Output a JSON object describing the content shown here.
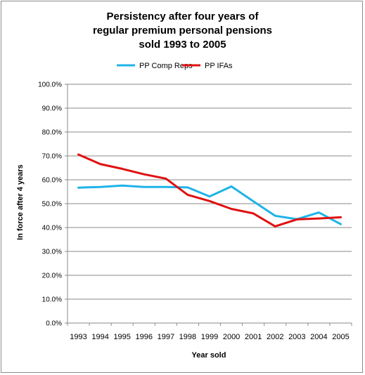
{
  "chart_data": {
    "type": "line",
    "title_lines": [
      "Persistency after four years of",
      "regular premium personal pensions",
      "sold 1993 to 2005"
    ],
    "xlabel": "Year sold",
    "ylabel": "In force after 4 years",
    "x": [
      "1993",
      "1994",
      "1995",
      "1996",
      "1997",
      "1998",
      "1999",
      "2000",
      "2001",
      "2002",
      "2003",
      "2004",
      "2005"
    ],
    "ylim": [
      0,
      100
    ],
    "yticks": [
      "0.0%",
      "10.0%",
      "20.0%",
      "30.0%",
      "40.0%",
      "50.0%",
      "60.0%",
      "70.0%",
      "80.0%",
      "90.0%",
      "100.0%"
    ],
    "grid": true,
    "legend_position": "top",
    "series": [
      {
        "name": "PP Comp Reps",
        "color": "#1fb3e8",
        "values": [
          56.7,
          57.0,
          57.6,
          57.0,
          57.0,
          56.8,
          53.0,
          57.2,
          51.0,
          44.9,
          43.5,
          46.3,
          41.4
        ]
      },
      {
        "name": "PP IFAs",
        "color": "#e01010",
        "values": [
          70.6,
          66.6,
          64.6,
          62.3,
          60.5,
          53.7,
          51.1,
          47.8,
          45.9,
          40.5,
          43.4,
          43.8,
          44.3
        ]
      }
    ]
  }
}
